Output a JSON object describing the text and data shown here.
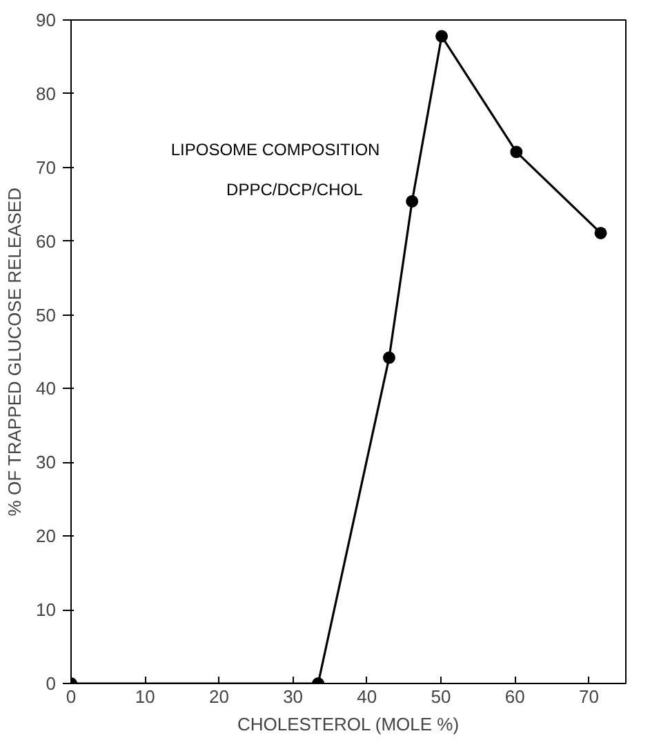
{
  "chart_data": {
    "type": "line",
    "xlabel": "CHOLESTEROL (MOLE %)",
    "ylabel": "% OF TRAPPED GLUCOSE RELEASED",
    "x": [
      0,
      33.4,
      43.0,
      46.1,
      50.1,
      60.2,
      71.6
    ],
    "series": [
      {
        "color": "#000000",
        "values": [
          0,
          0,
          44.2,
          65.4,
          87.8,
          72.1,
          61.1
        ]
      }
    ],
    "xlim": [
      0,
      75
    ],
    "ylim": [
      0,
      90
    ],
    "xticks": [
      0,
      10,
      20,
      30,
      40,
      50,
      60,
      70
    ],
    "yticks": [
      0,
      10,
      20,
      30,
      40,
      50,
      60,
      70,
      80,
      90
    ],
    "marker": "circle",
    "line_style": "solid",
    "grid": false,
    "annotations": [
      "LIPOSOME COMPOSITION",
      "DPPC/DCP/CHOL"
    ]
  }
}
